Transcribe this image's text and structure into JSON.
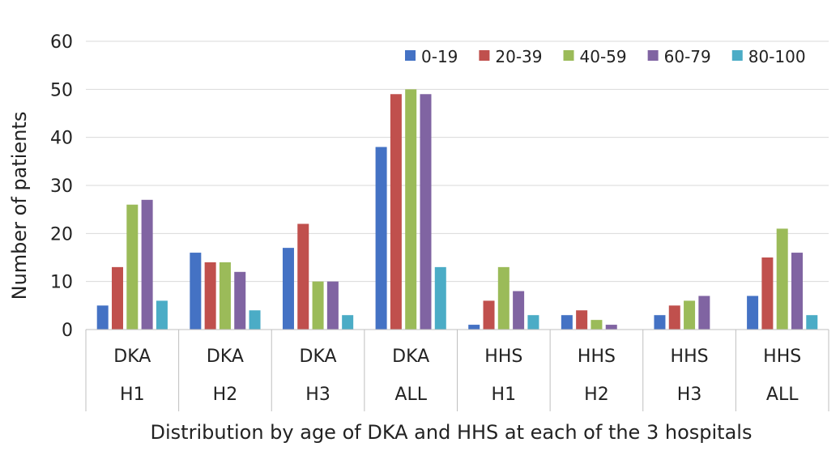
{
  "chart_data": {
    "type": "bar",
    "title": "",
    "xlabel": "Distribution by age of DKA and HHS at each of the 3 hospitals",
    "ylabel": "Number of patients",
    "ylim": [
      0,
      60
    ],
    "yticks": [
      0,
      10,
      20,
      30,
      40,
      50,
      60
    ],
    "grid": true,
    "legend_position": "top-right",
    "categories": [
      [
        "DKA",
        "H1"
      ],
      [
        "DKA",
        "H2"
      ],
      [
        "DKA",
        "H3"
      ],
      [
        "DKA",
        "ALL"
      ],
      [
        "HHS",
        "H1"
      ],
      [
        "HHS",
        "H2"
      ],
      [
        "HHS",
        "H3"
      ],
      [
        "HHS",
        "ALL"
      ]
    ],
    "series": [
      {
        "name": "0-19",
        "color": "#4472c4",
        "values": [
          5,
          16,
          17,
          38,
          1,
          3,
          3,
          7
        ]
      },
      {
        "name": "20-39",
        "color": "#c0504d",
        "values": [
          13,
          14,
          22,
          49,
          6,
          4,
          5,
          15
        ]
      },
      {
        "name": "40-59",
        "color": "#9bbb59",
        "values": [
          26,
          14,
          10,
          50,
          13,
          2,
          6,
          21
        ]
      },
      {
        "name": "60-79",
        "color": "#8064a2",
        "values": [
          27,
          12,
          10,
          49,
          8,
          1,
          7,
          16
        ]
      },
      {
        "name": "80-100",
        "color": "#4bacc6",
        "values": [
          6,
          4,
          3,
          13,
          3,
          0,
          0,
          3
        ]
      }
    ]
  }
}
